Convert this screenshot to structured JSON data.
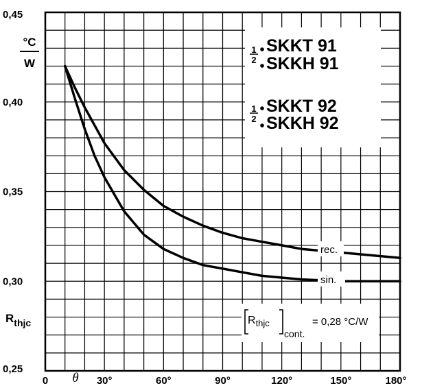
{
  "chart_data": {
    "type": "line",
    "title": "",
    "models": [
      "SKKT 91",
      "SKKH 91",
      "SKKT 92",
      "SKKH 92"
    ],
    "model_prefix": {
      "numerator": "1",
      "denominator": "2"
    },
    "xlabel": "θ",
    "ylabel": "Rthjc",
    "ylabel_main": "R",
    "ylabel_sub": "thjc",
    "y_unit": {
      "numerator": "°C",
      "denominator": "W"
    },
    "xlim": [
      0,
      180
    ],
    "ylim": [
      0.25,
      0.45
    ],
    "x_ticks": [
      {
        "value": 0,
        "label": "0"
      },
      {
        "value": 30,
        "label": "30°"
      },
      {
        "value": 60,
        "label": "60°"
      },
      {
        "value": 90,
        "label": "90°"
      },
      {
        "value": 120,
        "label": "120°"
      },
      {
        "value": 150,
        "label": "150°"
      },
      {
        "value": 180,
        "label": "180°"
      }
    ],
    "y_ticks": [
      {
        "value": 0.25,
        "label": "0,25"
      },
      {
        "value": 0.3,
        "label": "0,30"
      },
      {
        "value": 0.35,
        "label": "0,35"
      },
      {
        "value": 0.4,
        "label": "0,40"
      },
      {
        "value": 0.45,
        "label": "0,45"
      }
    ],
    "grid": true,
    "series": [
      {
        "name": "rec.",
        "x": [
          10,
          15,
          20,
          25,
          30,
          40,
          50,
          60,
          70,
          80,
          90,
          100,
          110,
          120,
          130,
          140,
          150,
          160,
          170,
          180
        ],
        "y": [
          0.42,
          0.408,
          0.397,
          0.387,
          0.377,
          0.362,
          0.351,
          0.342,
          0.336,
          0.331,
          0.327,
          0.324,
          0.322,
          0.32,
          0.318,
          0.317,
          0.316,
          0.315,
          0.314,
          0.313
        ]
      },
      {
        "name": "sin.",
        "x": [
          10,
          15,
          20,
          25,
          30,
          40,
          50,
          60,
          70,
          80,
          90,
          100,
          110,
          120,
          130,
          140,
          150,
          160,
          170,
          180
        ],
        "y": [
          0.42,
          0.402,
          0.385,
          0.37,
          0.358,
          0.339,
          0.326,
          0.318,
          0.313,
          0.309,
          0.307,
          0.305,
          0.303,
          0.302,
          0.301,
          0.3005,
          0.3,
          0.3,
          0.3,
          0.3
        ]
      }
    ],
    "annotation": {
      "symbol": "Rthjc",
      "symbol_main": "R",
      "symbol_sub": "thjc",
      "subscript": "cont.",
      "value_text": "= 0,28 °C/W"
    }
  }
}
